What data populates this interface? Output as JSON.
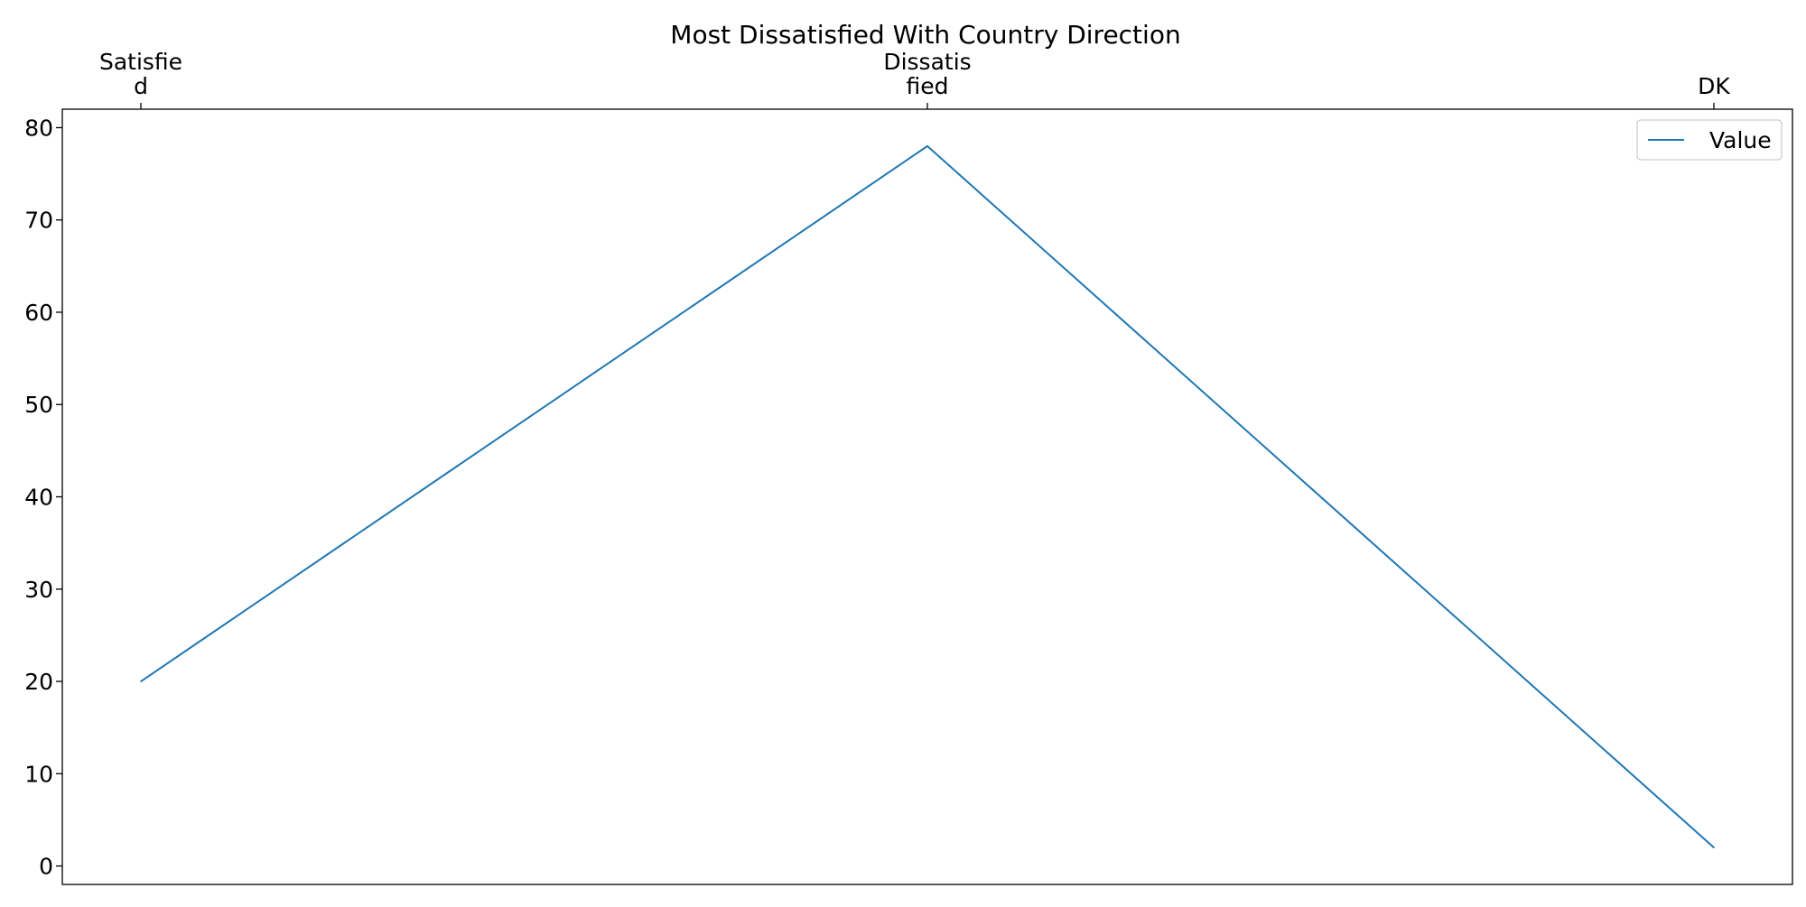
{
  "chart_data": {
    "type": "line",
    "title": "Most Dissatisfied With Country Direction",
    "xlabel": "",
    "ylabel": "",
    "categories": [
      [
        "Satisfie",
        "d"
      ],
      [
        "Dissatis",
        "fied"
      ],
      [
        "DK"
      ]
    ],
    "series": [
      {
        "name": "Value",
        "values": [
          20,
          78,
          2
        ],
        "color": "#1f77b4"
      }
    ],
    "ylim": [
      -2,
      82
    ],
    "yticks": [
      0,
      10,
      20,
      30,
      40,
      50,
      60,
      70,
      80
    ],
    "x_axis_position": "top",
    "grid": false,
    "legend_position": "top-right"
  }
}
